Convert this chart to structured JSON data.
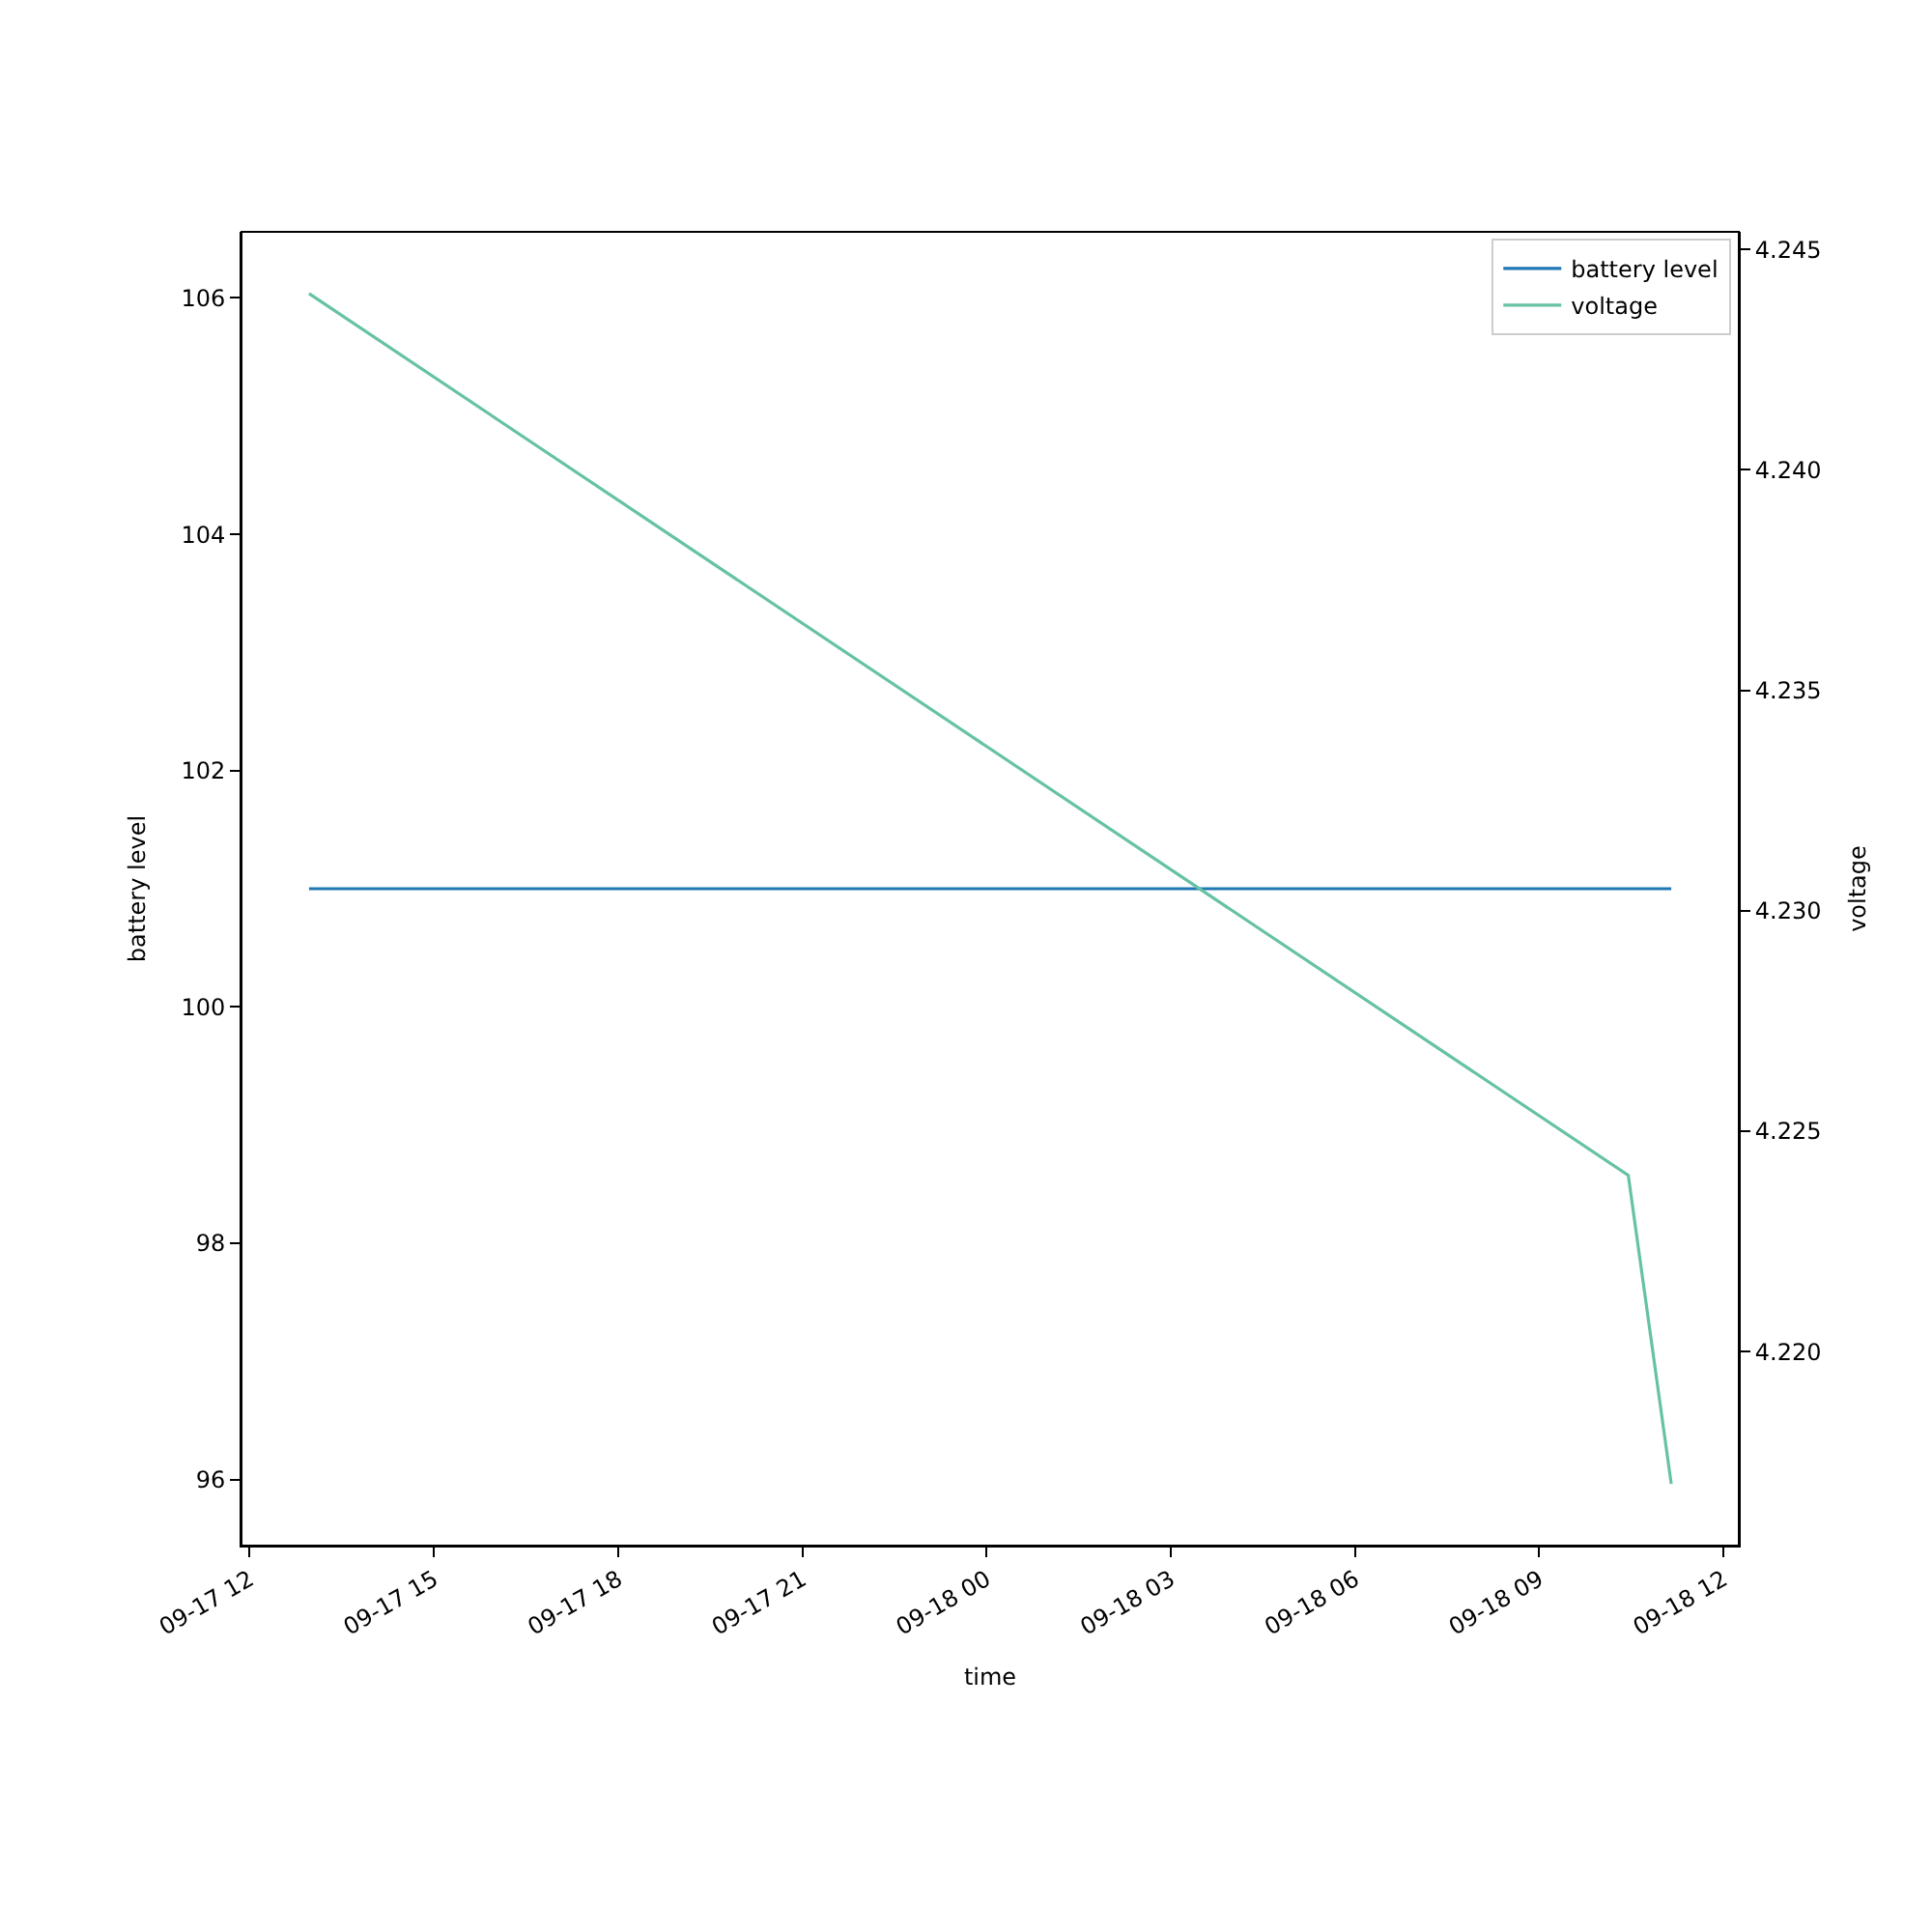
{
  "chart_data": {
    "type": "line",
    "xlabel": "time",
    "ylabel": "battery level",
    "y2label": "voltage",
    "series": [
      {
        "name": "battery level",
        "color": "#1f77b4",
        "x": [
          "--09-17T12:58",
          "--09-18T11:09"
        ],
        "values": [
          101,
          101
        ]
      },
      {
        "name": "voltage",
        "color": "#66c2a5",
        "axis": "y2",
        "x": [
          "--09-17T12:58",
          "--09-18T10:27",
          "--09-18T11:09"
        ],
        "values": [
          4.244,
          4.224,
          4.217
        ]
      }
    ],
    "xlim": [
      "--09-17T11:52",
      "--09-18T12:15"
    ],
    "xticks": [
      {
        "value": "--09-17T12:00",
        "label": "09-17 12"
      },
      {
        "value": "--09-17T15:00",
        "label": "09-17 15"
      },
      {
        "value": "--09-17T18:00",
        "label": "09-17 18"
      },
      {
        "value": "--09-17T21:00",
        "label": "09-17 21"
      },
      {
        "value": "--09-18T00:00",
        "label": "09-18 00"
      },
      {
        "value": "--09-18T03:00",
        "label": "09-18 03"
      },
      {
        "value": "--09-18T06:00",
        "label": "09-18 06"
      },
      {
        "value": "--09-18T09:00",
        "label": "09-18 09"
      },
      {
        "value": "--09-18T12:00",
        "label": "09-18 12"
      }
    ],
    "ylim": [
      95.44,
      106.56
    ],
    "yticks": [
      96,
      98,
      100,
      102,
      104,
      106
    ],
    "y2lim": [
      4.2156,
      4.2454
    ],
    "y2ticks": [
      {
        "value": 4.22,
        "label": "4.220"
      },
      4.225,
      {
        "value": 4.23,
        "label": "4.230"
      },
      4.235,
      {
        "value": 4.24,
        "label": "4.240"
      },
      4.245
    ],
    "legend": "top right",
    "marker": "none",
    "line_style": "solid"
  }
}
